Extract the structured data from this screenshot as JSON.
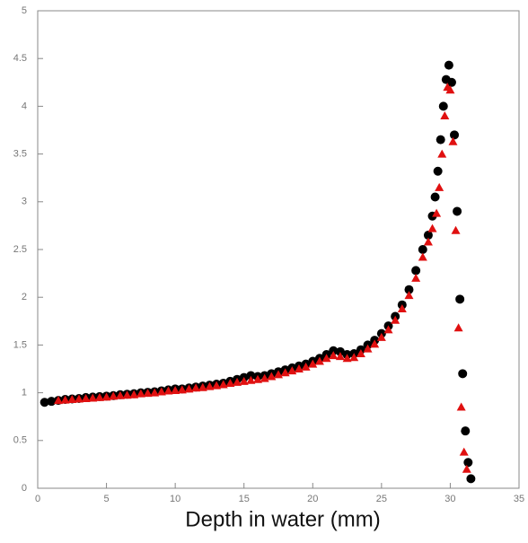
{
  "chart_data": {
    "type": "scatter",
    "x_label": "Depth in water (mm)",
    "xlim": [
      0,
      35
    ],
    "xticks": [
      0,
      5,
      10,
      15,
      20,
      25,
      30,
      35
    ],
    "ylim": [
      0,
      5
    ],
    "yticks": [
      0,
      0.5,
      1,
      1.5,
      2,
      2.5,
      3,
      3.5,
      4,
      4.5,
      5
    ],
    "series": [
      {
        "color": "#000000",
        "marker": "circle",
        "x": [
          0.5,
          1,
          1.5,
          2,
          2.5,
          3,
          3.5,
          4,
          4.5,
          5,
          5.5,
          6,
          6.5,
          7,
          7.5,
          8,
          8.5,
          9,
          9.5,
          10,
          10.5,
          11,
          11.5,
          12,
          12.5,
          13,
          13.5,
          14,
          14.5,
          15,
          15.5,
          16,
          16.5,
          17,
          17.5,
          18,
          18.5,
          19,
          19.5,
          20,
          20.5,
          21,
          21.5,
          22,
          22.5,
          23,
          23.5,
          24,
          24.5,
          25,
          25.5,
          26,
          26.5,
          27,
          27.5,
          28,
          28.4,
          28.7,
          28.9,
          29.1,
          29.3,
          29.5,
          29.7,
          29.9,
          30.1,
          30.3,
          30.5,
          30.7,
          30.9,
          31.1,
          31.3,
          31.5
        ],
        "values": [
          0.9,
          0.91,
          0.92,
          0.93,
          0.935,
          0.94,
          0.95,
          0.955,
          0.96,
          0.965,
          0.97,
          0.98,
          0.985,
          0.99,
          1.0,
          1.005,
          1.01,
          1.02,
          1.03,
          1.04,
          1.04,
          1.05,
          1.06,
          1.07,
          1.08,
          1.09,
          1.1,
          1.12,
          1.14,
          1.16,
          1.18,
          1.17,
          1.18,
          1.2,
          1.22,
          1.24,
          1.26,
          1.28,
          1.3,
          1.33,
          1.36,
          1.4,
          1.44,
          1.43,
          1.4,
          1.41,
          1.45,
          1.5,
          1.55,
          1.62,
          1.7,
          1.8,
          1.92,
          2.08,
          2.28,
          2.5,
          2.65,
          2.85,
          3.05,
          3.32,
          3.65,
          4.0,
          4.28,
          4.43,
          4.25,
          3.7,
          2.9,
          1.98,
          1.2,
          0.6,
          0.27,
          0.1
        ]
      },
      {
        "color": "#e01010",
        "marker": "triangle",
        "x": [
          1.5,
          2,
          2.5,
          3,
          3.5,
          4,
          4.5,
          5,
          5.5,
          6,
          6.5,
          7,
          7.5,
          8,
          8.5,
          9,
          9.5,
          10,
          10.5,
          11,
          11.5,
          12,
          12.5,
          13,
          13.5,
          14,
          14.5,
          15,
          15.5,
          16,
          16.5,
          17,
          17.5,
          18,
          18.5,
          19,
          19.5,
          20,
          20.5,
          21,
          21.5,
          22,
          22.5,
          23,
          23.5,
          24,
          24.5,
          25,
          25.5,
          26,
          26.5,
          27,
          27.5,
          28,
          28.4,
          28.7,
          29,
          29.2,
          29.4,
          29.6,
          29.8,
          30,
          30.2,
          30.4,
          30.6,
          30.8,
          31,
          31.2
        ],
        "values": [
          0.92,
          0.925,
          0.93,
          0.935,
          0.94,
          0.945,
          0.95,
          0.955,
          0.965,
          0.97,
          0.975,
          0.98,
          0.99,
          0.995,
          1.0,
          1.01,
          1.02,
          1.025,
          1.03,
          1.04,
          1.05,
          1.055,
          1.065,
          1.075,
          1.085,
          1.1,
          1.11,
          1.12,
          1.13,
          1.14,
          1.15,
          1.17,
          1.19,
          1.21,
          1.23,
          1.25,
          1.27,
          1.3,
          1.33,
          1.36,
          1.39,
          1.38,
          1.36,
          1.37,
          1.41,
          1.46,
          1.51,
          1.58,
          1.66,
          1.76,
          1.88,
          2.02,
          2.2,
          2.42,
          2.58,
          2.72,
          2.88,
          3.15,
          3.5,
          3.9,
          4.2,
          4.17,
          3.63,
          2.7,
          1.68,
          0.85,
          0.38,
          0.2
        ]
      }
    ]
  }
}
